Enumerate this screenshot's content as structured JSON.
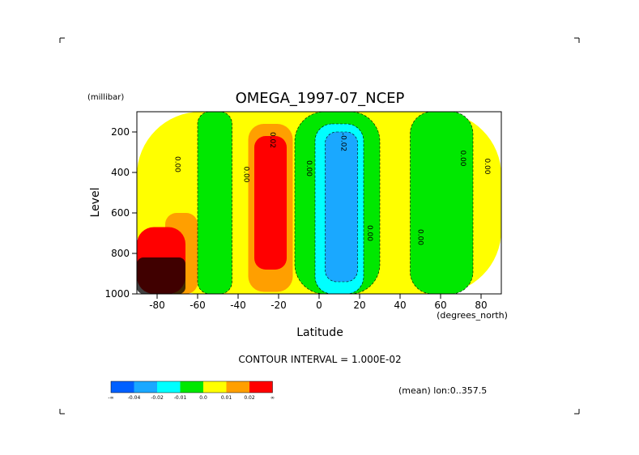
{
  "chart_data": {
    "type": "heatmap",
    "title": "OMEGA_1997-07_NCEP",
    "unit_label": "(millibar)",
    "xlabel": "Latitude",
    "x_unit_label": "(degrees_north)",
    "ylabel": "Level",
    "xlim": [
      -90,
      90
    ],
    "ylim": [
      1000,
      100
    ],
    "x_ticks": [
      -80,
      -60,
      -40,
      -20,
      0,
      20,
      40,
      60,
      80
    ],
    "y_ticks": [
      200,
      400,
      600,
      800,
      1000
    ],
    "contour_interval_text": "CONTOUR INTERVAL = 1.000E-02",
    "footnote": "(mean) lon:0..357.5",
    "contour_labels": [
      {
        "text": "0.00",
        "lat": -71,
        "level": 360
      },
      {
        "text": "0.00",
        "lat": -37,
        "level": 410
      },
      {
        "text": "0.02",
        "lat": -24,
        "level": 240
      },
      {
        "text": "0.00",
        "lat": -6,
        "level": 380
      },
      {
        "text": "-0.02",
        "lat": 11,
        "level": 250
      },
      {
        "text": "0.00",
        "lat": 24,
        "level": 700
      },
      {
        "text": "0.00",
        "lat": 49,
        "level": 720
      },
      {
        "text": "0.00",
        "lat": 70,
        "level": 330
      },
      {
        "text": "0.00",
        "lat": 82,
        "level": 370
      }
    ],
    "regions": [
      {
        "level_class": "0.0 to 0.01",
        "lat_range": [
          -90,
          90
        ],
        "level_range": [
          100,
          1000
        ]
      },
      {
        "level_class": "-0.01 to 0.0",
        "lat_range": [
          -60,
          -43
        ],
        "level_range": [
          100,
          1000
        ]
      },
      {
        "level_class": "-0.01 to 0.0",
        "lat_range": [
          -12,
          30
        ],
        "level_range": [
          100,
          1000
        ]
      },
      {
        "level_class": "-0.01 to 0.0",
        "lat_range": [
          45,
          76
        ],
        "level_range": [
          100,
          1000
        ]
      },
      {
        "level_class": "0.01 to 0.02",
        "lat_range": [
          -35,
          -13
        ],
        "level_range": [
          160,
          990
        ]
      },
      {
        "level_class": "0.02 to inf",
        "lat_range": [
          -32,
          -16
        ],
        "level_range": [
          220,
          880
        ]
      },
      {
        "level_class": "-0.02 to -0.01",
        "lat_range": [
          -2,
          22
        ],
        "level_range": [
          160,
          1000
        ]
      },
      {
        "level_class": "-0.04 to -0.02",
        "lat_range": [
          3,
          19
        ],
        "level_range": [
          200,
          940
        ]
      },
      {
        "level_class": "0.01 to 0.02",
        "lat_range": [
          -76,
          -60
        ],
        "level_range": [
          600,
          1000
        ]
      },
      {
        "level_class": "0.02 to inf",
        "lat_range": [
          -90,
          -66
        ],
        "level_range": [
          670,
          1000
        ]
      }
    ]
  },
  "colorbar": {
    "colors": [
      "#0060ff",
      "#1aa8ff",
      "#00ffff",
      "#00e800",
      "#ffff00",
      "#ff9f00",
      "#ff0000"
    ],
    "labels": [
      "-∞",
      "-0.04",
      "-0.02",
      "-0.01",
      "0.0",
      "0.01",
      "0.02",
      "∞"
    ]
  }
}
